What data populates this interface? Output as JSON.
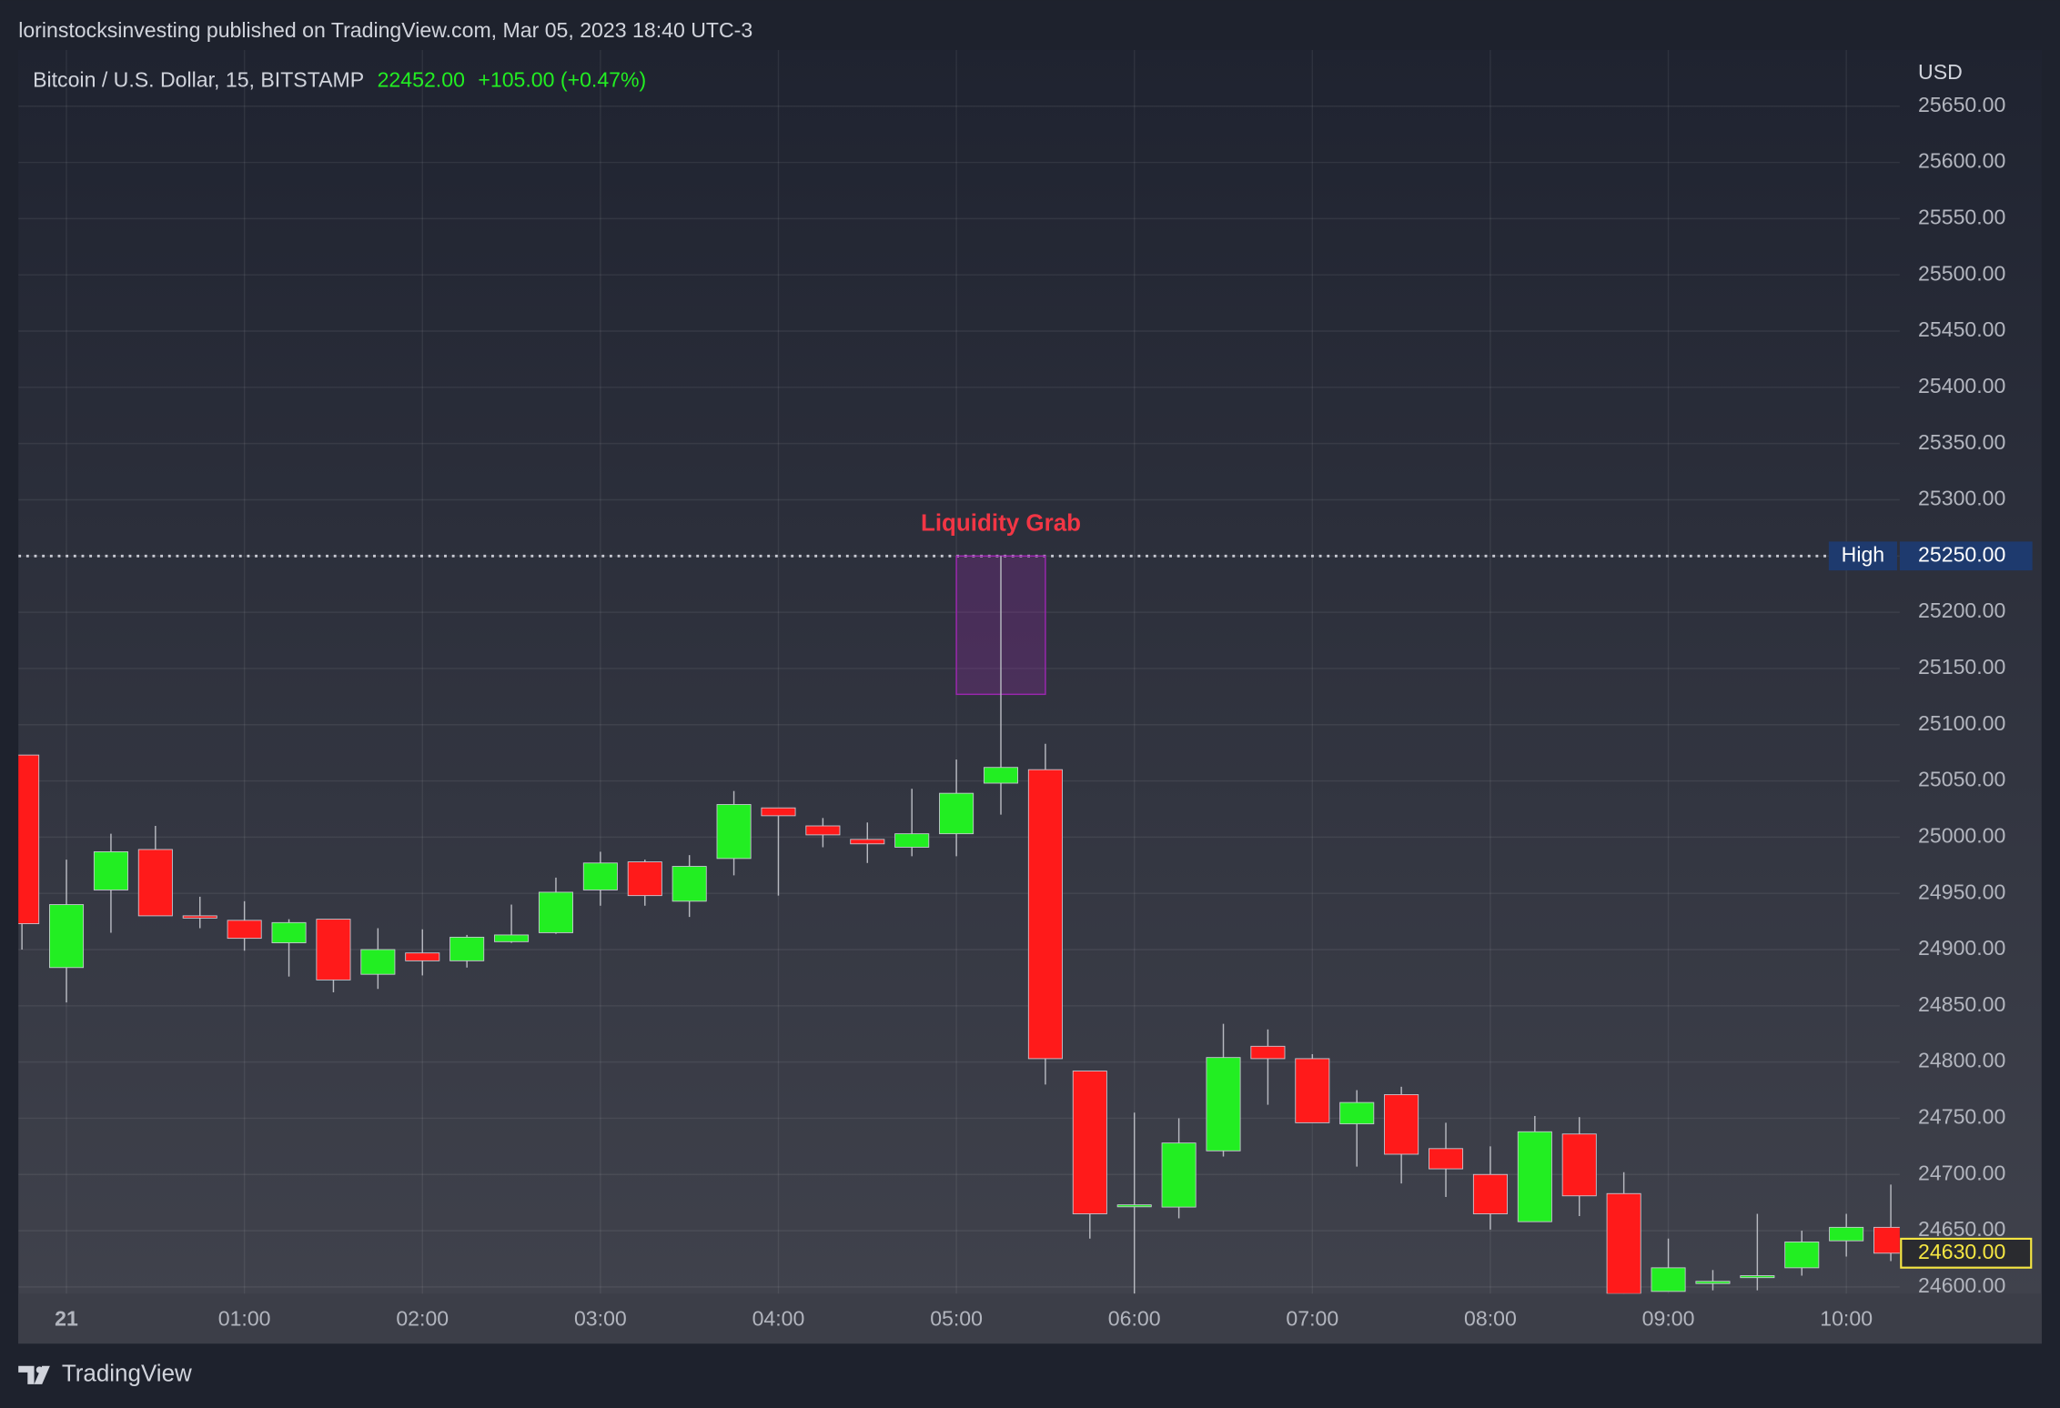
{
  "header": {
    "published": "lorinstocksinvesting published on TradingView.com, Mar 05, 2023 18:40 UTC-3",
    "brand": "TradingView"
  },
  "chart_data": {
    "type": "candlestick",
    "title": "Bitcoin / U.S. Dollar, 15, BITSTAMP",
    "last": "22452.00",
    "change": "+105.00 (+0.47%)",
    "currency": "USD",
    "up_color": "#22ee22",
    "down_color": "#ff1a1a",
    "grid": true,
    "x": [
      -0.25,
      0,
      0.25,
      0.5,
      0.75,
      1,
      1.25,
      1.5,
      1.75,
      2,
      2.25,
      2.5,
      2.75,
      3,
      3.25,
      3.5,
      3.75,
      4,
      4.25,
      4.5,
      4.75,
      5,
      5.25,
      5.5,
      5.75,
      6,
      6.25,
      6.5,
      6.75,
      7,
      7.25,
      7.5,
      7.75,
      8,
      8.25,
      8.5,
      8.75,
      9,
      9.25,
      9.5,
      9.75,
      10,
      10.25
    ],
    "open": [
      25073,
      24884,
      24953,
      24989,
      24930,
      24926,
      24906,
      24927,
      24878,
      24897,
      24890,
      24907,
      24915,
      24953,
      24978,
      24943,
      24981,
      25026,
      25010,
      24998,
      24991,
      25003,
      25048,
      25060,
      24792,
      24672,
      24671,
      24721,
      24814,
      24803,
      24745,
      24771,
      24723,
      24700,
      24658,
      24736,
      24683,
      24596,
      24603,
      24609,
      24617,
      24641,
      24653
    ],
    "high": [
      25073,
      24980,
      25003,
      25010,
      24947,
      24943,
      24927,
      24927,
      24919,
      24918,
      24913,
      24940,
      24964,
      24987,
      24980,
      24984,
      25041,
      25026,
      25017,
      25013,
      25043,
      25069,
      25250,
      25083,
      24792,
      24755,
      24750,
      24834,
      24829,
      24807,
      24775,
      24778,
      24746,
      24725,
      24752,
      24751,
      24702,
      24643,
      24615,
      24665,
      24650,
      24665,
      24691
    ],
    "low": [
      24900,
      24853,
      24915,
      24930,
      24919,
      24899,
      24876,
      24862,
      24865,
      24877,
      24884,
      24906,
      24914,
      24939,
      24939,
      24929,
      24966,
      24948,
      24991,
      24977,
      24983,
      24983,
      25020,
      24780,
      24643,
      24594,
      24661,
      24716,
      24762,
      24746,
      24707,
      24692,
      24680,
      24651,
      24658,
      24663,
      24594,
      24596,
      24597,
      24597,
      24610,
      24627,
      24623
    ],
    "close": [
      24923,
      24940,
      24987,
      24930,
      24928,
      24910,
      24924,
      24873,
      24900,
      24890,
      24911,
      24913,
      24951,
      24977,
      24948,
      24974,
      25029,
      25019,
      25002,
      24994,
      25003,
      25039,
      25062,
      24803,
      24665,
      24673,
      24728,
      24804,
      24803,
      24746,
      24764,
      24718,
      24705,
      24665,
      24738,
      24681,
      24594,
      24617,
      24605,
      24610,
      24640,
      24653,
      24630
    ],
    "xlim": [
      -0.27,
      10.3
    ],
    "xticks": [
      {
        "value": 0,
        "label": "21"
      },
      {
        "value": 1,
        "label": "01:00"
      },
      {
        "value": 2,
        "label": "02:00"
      },
      {
        "value": 3,
        "label": "03:00"
      },
      {
        "value": 4,
        "label": "04:00"
      },
      {
        "value": 5,
        "label": "05:00"
      },
      {
        "value": 6,
        "label": "06:00"
      },
      {
        "value": 7,
        "label": "07:00"
      },
      {
        "value": 8,
        "label": "08:00"
      },
      {
        "value": 9,
        "label": "09:00"
      },
      {
        "value": 10,
        "label": "10:00"
      }
    ],
    "ylim": [
      24594,
      25700
    ],
    "yticks": [
      {
        "value": 24600,
        "label": "24600.00"
      },
      {
        "value": 24650,
        "label": "24650.00"
      },
      {
        "value": 24700,
        "label": "24700.00"
      },
      {
        "value": 24750,
        "label": "24750.00"
      },
      {
        "value": 24800,
        "label": "24800.00"
      },
      {
        "value": 24850,
        "label": "24850.00"
      },
      {
        "value": 24900,
        "label": "24900.00"
      },
      {
        "value": 24950,
        "label": "24950.00"
      },
      {
        "value": 25000,
        "label": "25000.00"
      },
      {
        "value": 25050,
        "label": "25050.00"
      },
      {
        "value": 25100,
        "label": "25100.00"
      },
      {
        "value": 25150,
        "label": "25150.00"
      },
      {
        "value": 25200,
        "label": "25200.00"
      },
      {
        "value": 25250,
        "label": "25250.00"
      },
      {
        "value": 25300,
        "label": "25300.00"
      },
      {
        "value": 25350,
        "label": "25350.00"
      },
      {
        "value": 25400,
        "label": "25400.00"
      },
      {
        "value": 25450,
        "label": "25450.00"
      },
      {
        "value": 25500,
        "label": "25500.00"
      },
      {
        "value": 25550,
        "label": "25550.00"
      },
      {
        "value": 25600,
        "label": "25600.00"
      },
      {
        "value": 25650,
        "label": "25650.00"
      }
    ],
    "high_line": {
      "value": 25250,
      "label": "25250.00",
      "text": "High"
    },
    "price_line": {
      "value": 24630,
      "label": "24630.00"
    },
    "highlight": {
      "x": [
        5.0,
        5.5
      ],
      "y": [
        25127,
        25250
      ],
      "text": "Liquidity Grab"
    }
  }
}
